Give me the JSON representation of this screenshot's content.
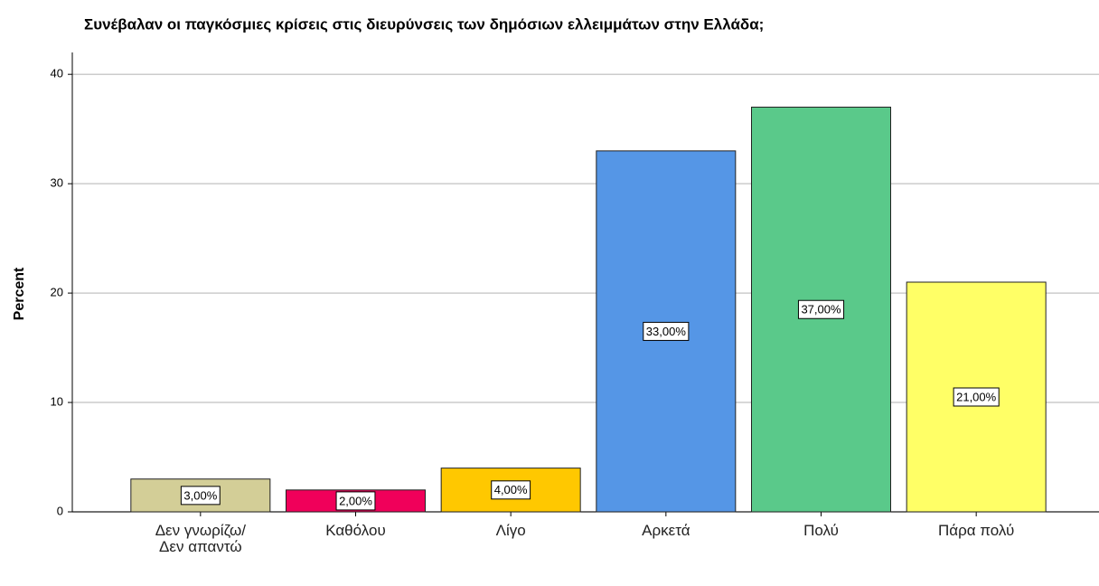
{
  "chart_data": {
    "type": "bar",
    "title": "Συνέβαλαν οι παγκόσμιες κρίσεις στις διευρύνσεις των δημόσιων ελλειμμάτων στην Ελλάδα;",
    "y_label": "Percent",
    "categories": [
      "Δεν γνωρίζω/Δεν απαντώ",
      "Καθόλου",
      "Λίγο",
      "Αρκετά",
      "Πολύ",
      "Πάρα πολύ"
    ],
    "values": [
      3,
      2,
      4,
      33,
      37,
      21
    ],
    "value_labels": [
      "3,00%",
      "2,00%",
      "4,00%",
      "33,00%",
      "37,00%",
      "21,00%"
    ],
    "colors": [
      "#d3ce97",
      "#f0005a",
      "#ffc800",
      "#5596e6",
      "#5ac98a",
      "#ffff66"
    ],
    "ylim": [
      0,
      42
    ],
    "yticks": [
      0,
      10,
      20,
      30,
      40
    ],
    "grid": true
  }
}
